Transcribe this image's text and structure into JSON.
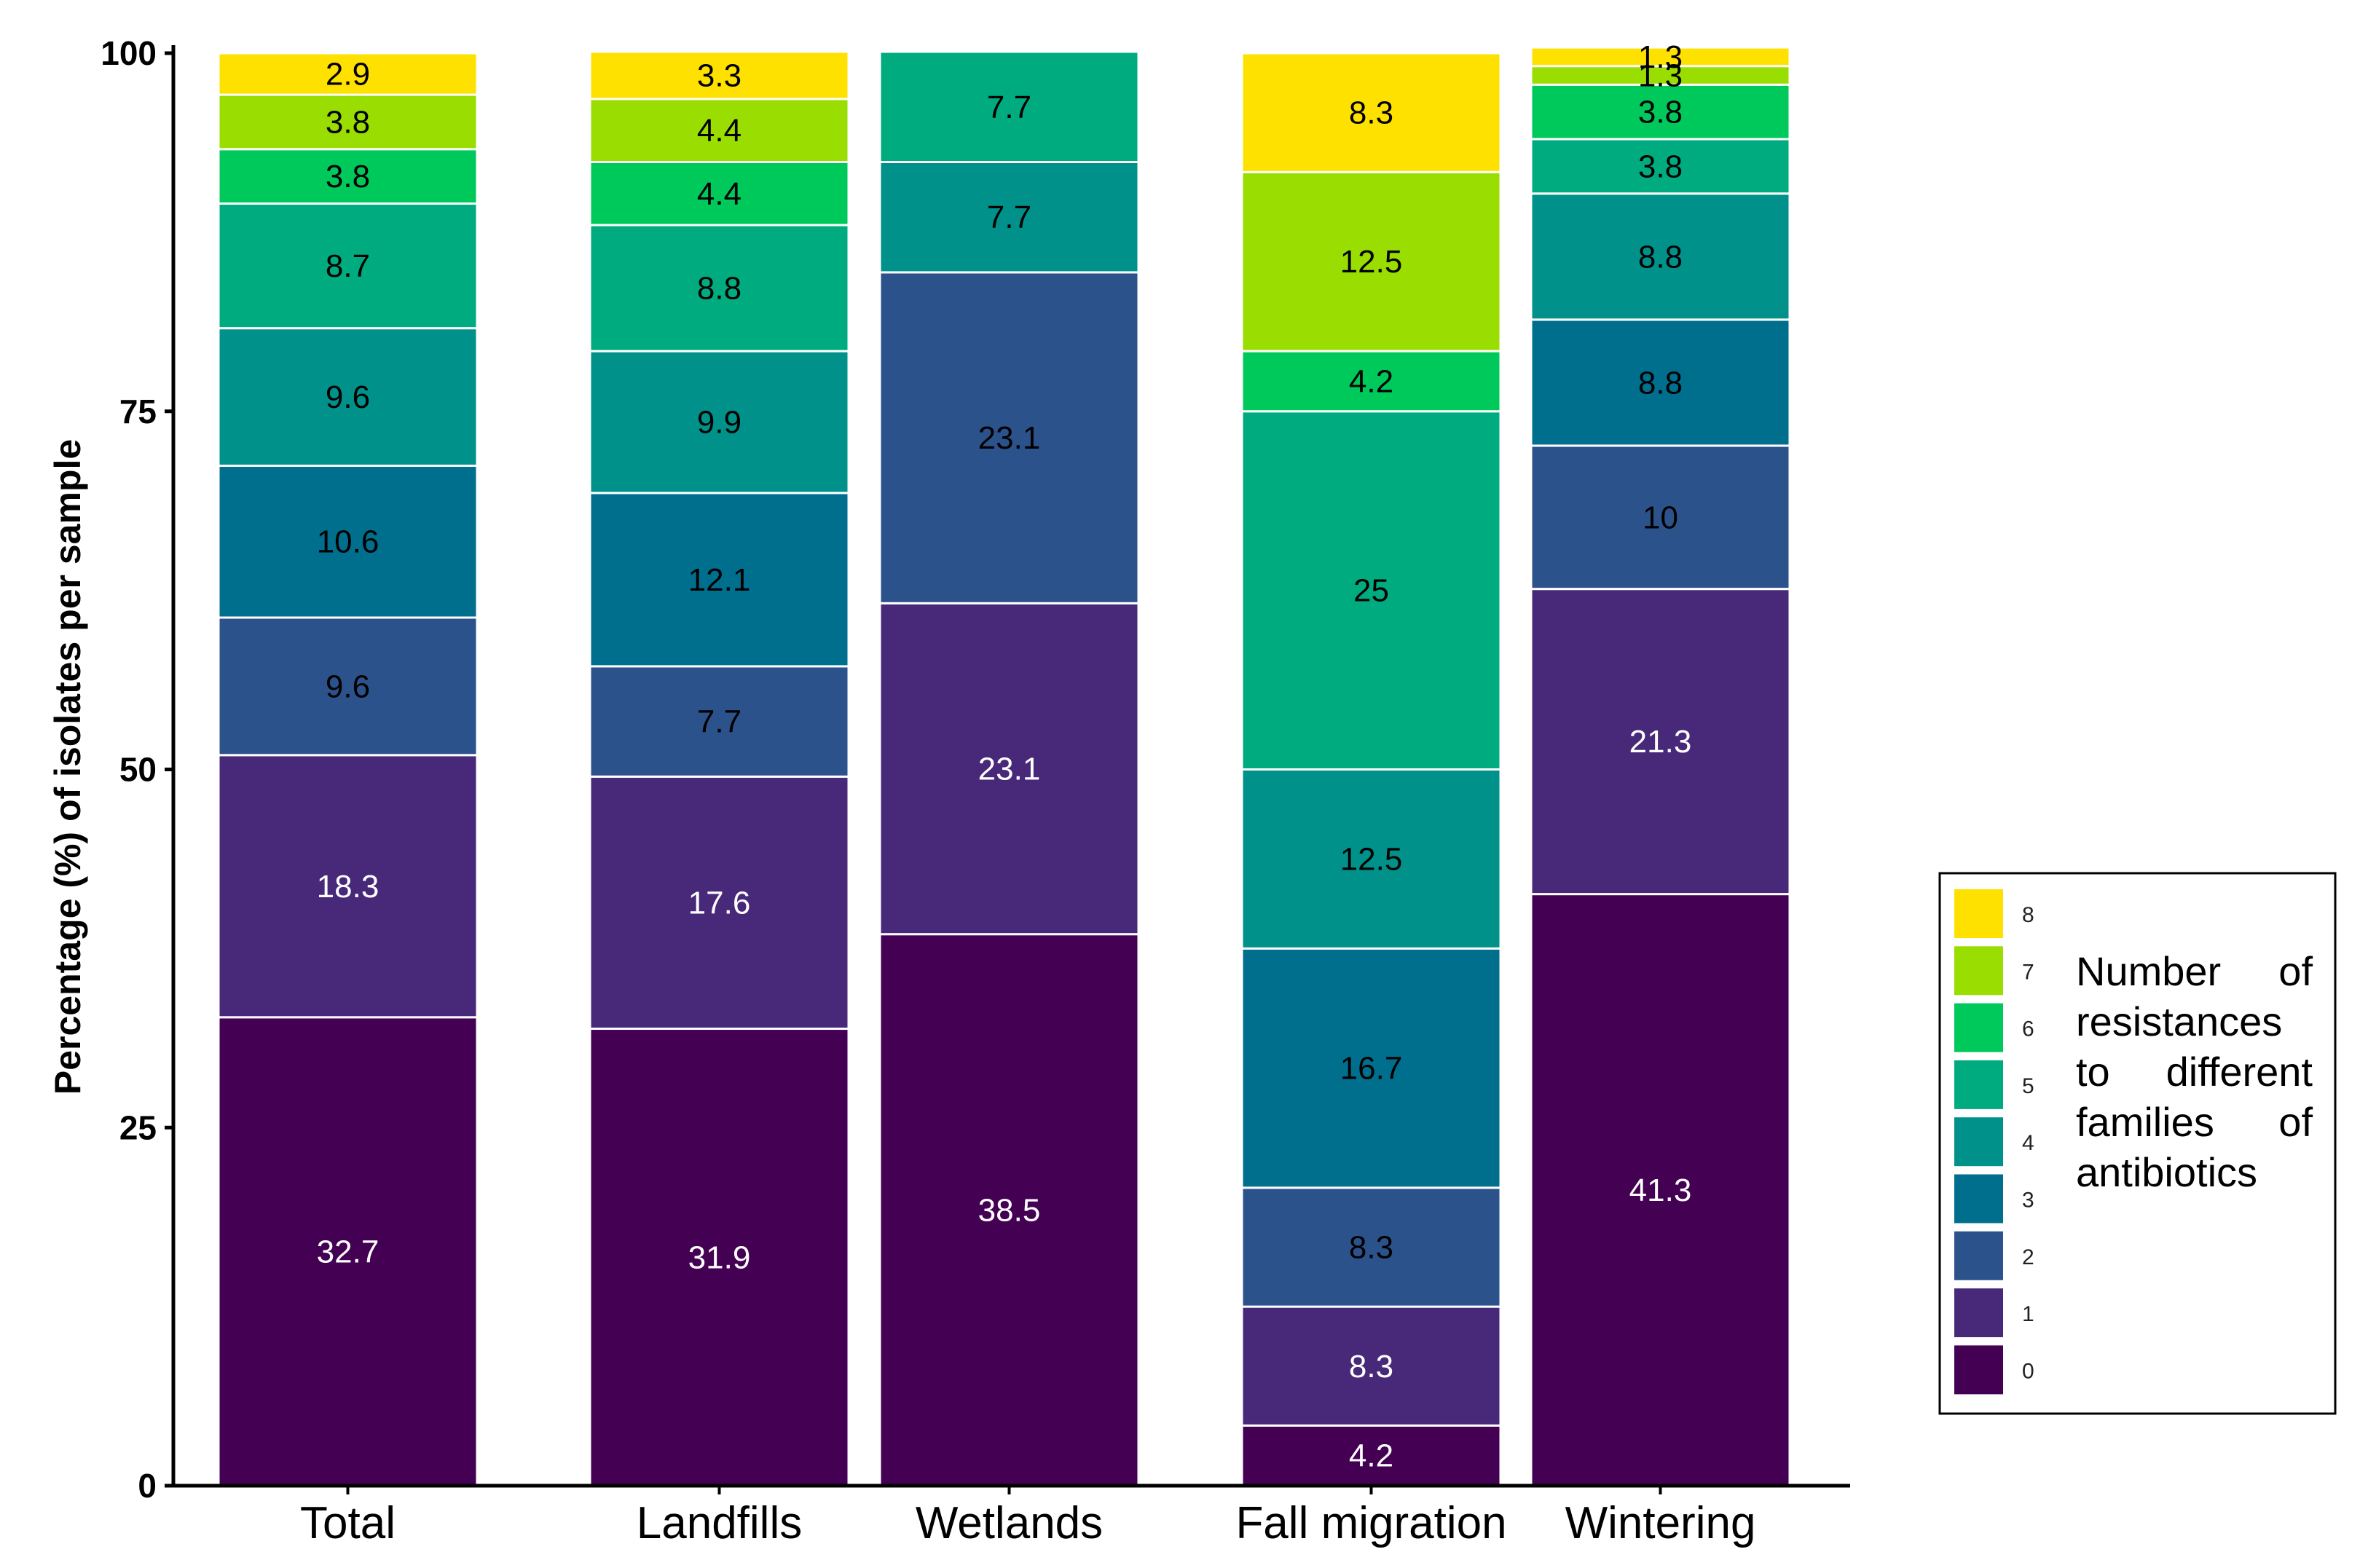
{
  "chart_data": {
    "type": "bar",
    "stacked": true,
    "title": "",
    "xlabel": "",
    "ylabel": "Percentage (%) of isolates per sample",
    "ylim": [
      0,
      100
    ],
    "yticks": [
      "0",
      "25",
      "50",
      "75",
      "100"
    ],
    "grid": false,
    "categories": [
      "Total",
      "Landfills",
      "Wetlands",
      "Fall migration",
      "Wintering"
    ],
    "series": [
      {
        "name": "0",
        "color": "#440154",
        "labels": [
          "32.7",
          "31.9",
          "38.5",
          "4.2",
          "41.3"
        ],
        "values": [
          32.7,
          31.9,
          38.5,
          4.2,
          41.3
        ]
      },
      {
        "name": "1",
        "color": "#482878",
        "labels": [
          "18.3",
          "17.6",
          "23.1",
          "8.3",
          "21.3"
        ],
        "values": [
          18.3,
          17.6,
          23.1,
          8.3,
          21.3
        ]
      },
      {
        "name": "2",
        "color": "#2c528c",
        "labels": [
          "9.6",
          "7.7",
          "23.1",
          "8.3",
          "10"
        ],
        "values": [
          9.6,
          7.7,
          23.1,
          8.3,
          10
        ]
      },
      {
        "name": "3",
        "color": "#006f8e",
        "labels": [
          "10.6",
          "12.1",
          "",
          "16.7",
          "8.8"
        ],
        "values": [
          10.6,
          12.1,
          0,
          16.7,
          8.8
        ]
      },
      {
        "name": "4",
        "color": "#00928a",
        "labels": [
          "9.6",
          "9.9",
          "7.7",
          "12.5",
          "8.8"
        ],
        "values": [
          9.6,
          9.9,
          7.7,
          12.5,
          8.8
        ]
      },
      {
        "name": "5",
        "color": "#00ac7f",
        "labels": [
          "8.7",
          "8.8",
          "7.7",
          "25",
          "3.8"
        ],
        "values": [
          8.7,
          8.8,
          7.7,
          25,
          3.8
        ]
      },
      {
        "name": "6",
        "color": "#00c95b",
        "labels": [
          "3.8",
          "4.4",
          "",
          "4.2",
          "3.8"
        ],
        "values": [
          3.8,
          4.4,
          0,
          4.2,
          3.8
        ]
      },
      {
        "name": "7",
        "color": "#99de00",
        "labels": [
          "3.8",
          "4.4",
          "",
          "12.5",
          "1.3"
        ],
        "values": [
          3.8,
          4.4,
          0,
          12.5,
          1.3
        ]
      },
      {
        "name": "8",
        "color": "#ffe100",
        "labels": [
          "2.9",
          "3.3",
          "",
          "8.3",
          "1.3"
        ],
        "values": [
          2.9,
          3.3,
          0,
          8.3,
          1.3
        ]
      }
    ],
    "dark_label_series": [
      "2",
      "3",
      "4",
      "5",
      "6",
      "7",
      "8"
    ],
    "legend": {
      "position": "right",
      "title": [
        "Number",
        "of",
        "resistances",
        "to",
        "different",
        "families",
        "of",
        "antibiotics"
      ],
      "title_lines": [
        "Number of",
        "resistances",
        "to different",
        "families of",
        "antibiotics"
      ],
      "order": [
        "8",
        "7",
        "6",
        "5",
        "4",
        "3",
        "2",
        "1",
        "0"
      ]
    }
  }
}
